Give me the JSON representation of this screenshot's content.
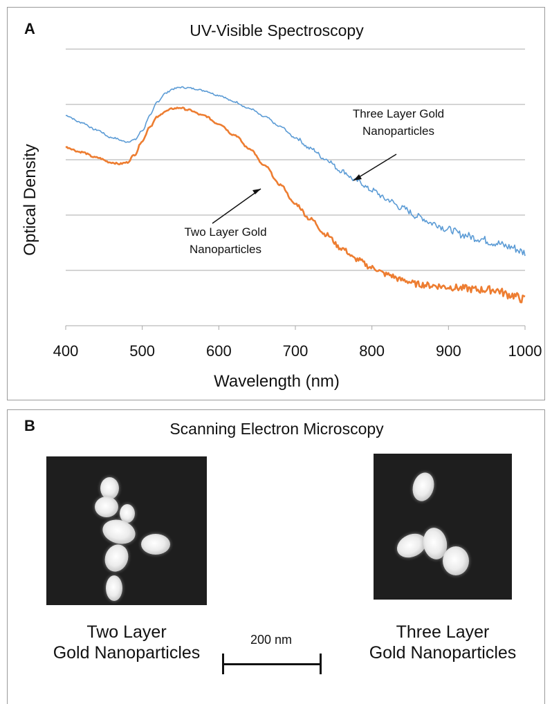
{
  "panel_a": {
    "letter": "A",
    "title": "UV-Visible Spectroscopy"
  },
  "chart_data": {
    "type": "line",
    "title": "UV-Visible Spectroscopy",
    "xlabel": "Wavelength (nm)",
    "ylabel": "Optical Density",
    "xlim": [
      400,
      1000
    ],
    "x_ticks": [
      "400",
      "500",
      "600",
      "700",
      "800",
      "900",
      "1000"
    ],
    "y_ticks_labeled": false,
    "grid": "horizontal",
    "ylim": [
      0,
      1
    ],
    "series": [
      {
        "name": "Three Layer Gold Nanoparticles",
        "color": "#5b9bd5",
        "x": [
          400,
          420,
          440,
          460,
          480,
          490,
          500,
          510,
          520,
          530,
          540,
          550,
          560,
          570,
          580,
          600,
          620,
          640,
          660,
          680,
          700,
          720,
          740,
          760,
          780,
          800,
          820,
          840,
          860,
          880,
          900,
          920,
          940,
          960,
          980,
          1000
        ],
        "y": [
          0.76,
          0.735,
          0.708,
          0.68,
          0.665,
          0.672,
          0.705,
          0.76,
          0.81,
          0.84,
          0.856,
          0.862,
          0.86,
          0.856,
          0.85,
          0.833,
          0.81,
          0.785,
          0.755,
          0.72,
          0.68,
          0.64,
          0.602,
          0.56,
          0.524,
          0.49,
          0.456,
          0.425,
          0.395,
          0.37,
          0.348,
          0.328,
          0.315,
          0.3,
          0.285,
          0.265
        ]
      },
      {
        "name": "Two Layer Gold Nanoparticles",
        "color": "#ed7d31",
        "x": [
          400,
          420,
          440,
          460,
          470,
          480,
          490,
          500,
          510,
          520,
          530,
          540,
          550,
          560,
          580,
          600,
          620,
          640,
          660,
          680,
          700,
          720,
          740,
          760,
          780,
          800,
          820,
          840,
          860,
          880,
          900,
          920,
          940,
          960,
          980,
          1000
        ],
        "y": [
          0.645,
          0.628,
          0.608,
          0.59,
          0.585,
          0.59,
          0.618,
          0.668,
          0.72,
          0.755,
          0.775,
          0.785,
          0.788,
          0.78,
          0.76,
          0.73,
          0.69,
          0.64,
          0.578,
          0.51,
          0.44,
          0.385,
          0.33,
          0.28,
          0.24,
          0.21,
          0.185,
          0.165,
          0.15,
          0.145,
          0.14,
          0.135,
          0.13,
          0.13,
          0.112,
          0.095
        ]
      }
    ],
    "annotations": [
      {
        "lines": [
          "Three Layer Gold",
          "Nanoparticles"
        ]
      },
      {
        "lines": [
          "Two Layer Gold",
          "Nanoparticles"
        ]
      }
    ]
  },
  "panel_b": {
    "letter": "B",
    "title": "Scanning Electron Microscopy",
    "images": [
      {
        "label_line1": "Two Layer",
        "label_line2": "Gold Nanoparticles"
      },
      {
        "label_line1": "Three Layer",
        "label_line2": "Gold Nanoparticles"
      }
    ],
    "scale_bar_label": "200 nm"
  }
}
